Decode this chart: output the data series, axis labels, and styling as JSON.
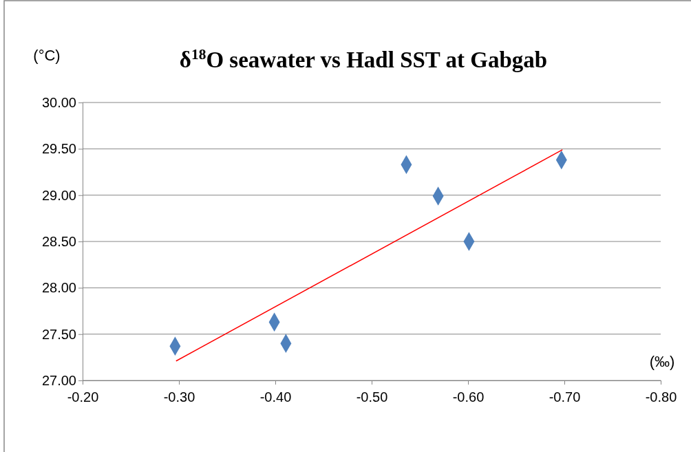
{
  "chart_data": {
    "type": "scatter",
    "title": "δ$^{18}$O seawater vs Hadl SST at Gabgab",
    "xlabel": "(‰)",
    "ylabel": "(°C)",
    "xlim": [
      -0.2,
      -0.8
    ],
    "xticks": [
      {
        "value": -0.2,
        "label": "-0.20"
      },
      {
        "value": -0.3,
        "label": "-0.30"
      },
      {
        "value": -0.4,
        "label": "-0.40"
      },
      {
        "value": -0.5,
        "label": "-0.50"
      },
      {
        "value": -0.6,
        "label": "-0.60"
      },
      {
        "value": -0.7,
        "label": "-0.70"
      },
      {
        "value": -0.8,
        "label": "-0.80"
      }
    ],
    "ylim": [
      27,
      30
    ],
    "yticks": [
      {
        "value": 27,
        "label": "27.00"
      },
      {
        "value": 27.5,
        "label": "27.50"
      },
      {
        "value": 28,
        "label": "28.00"
      },
      {
        "value": 28.5,
        "label": "28.50"
      },
      {
        "value": 29,
        "label": "29.00"
      },
      {
        "value": 29.5,
        "label": "29.50"
      },
      {
        "value": 30,
        "label": "30.00"
      }
    ],
    "grid": "y",
    "series": [
      {
        "color": "#4f81bd",
        "marker": "diamond",
        "x": [
          -0.296,
          -0.399,
          -0.411,
          -0.536,
          -0.569,
          -0.601,
          -0.697
        ],
        "values": [
          27.37,
          27.63,
          27.4,
          29.33,
          28.99,
          28.5,
          29.38
        ]
      },
      {
        "type": "line",
        "color": "#ff0000",
        "marker": "none",
        "x": [
          -0.297,
          -0.698
        ],
        "values": [
          27.21,
          29.49
        ]
      }
    ]
  }
}
